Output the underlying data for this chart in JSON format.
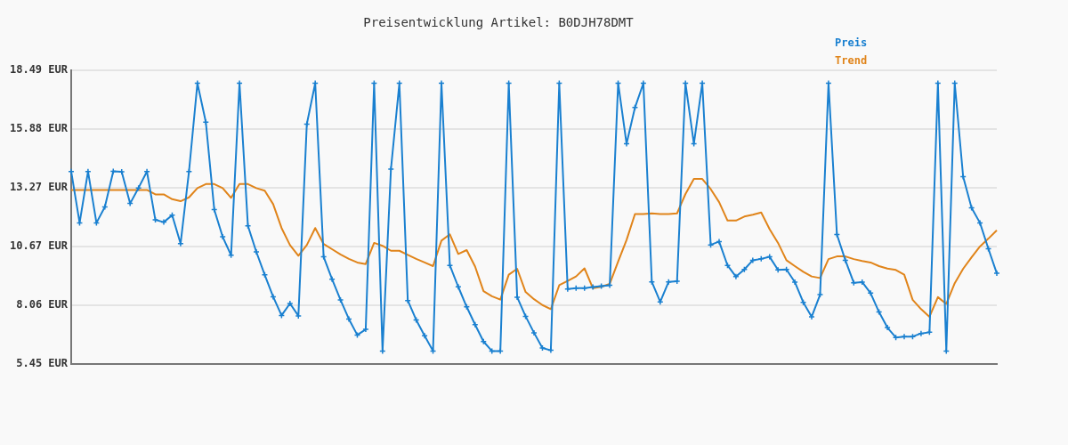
{
  "chart_data": {
    "type": "line",
    "title": "Preisentwicklung Artikel: B0DJH78DMT",
    "categories": [
      null,
      null,
      null,
      null,
      null,
      null,
      null,
      null,
      null,
      null,
      null,
      null,
      null,
      null,
      null,
      null,
      null,
      null,
      null,
      null,
      null,
      null,
      null,
      null,
      null,
      null,
      null,
      null,
      null,
      null,
      null,
      null,
      null,
      null,
      null,
      null,
      null,
      null,
      null,
      null,
      null,
      null,
      null,
      null,
      null,
      null,
      null,
      null,
      null,
      null,
      null,
      null,
      null,
      null,
      null,
      null,
      null,
      null,
      null,
      null,
      null,
      null,
      null,
      null,
      null,
      null,
      null,
      null,
      null,
      null,
      null,
      null,
      null,
      null,
      null,
      null,
      null,
      null,
      null,
      null,
      null,
      null,
      null,
      null,
      null,
      null,
      null,
      null,
      null,
      null,
      null,
      null,
      null,
      null,
      null,
      null,
      null,
      null,
      null,
      null,
      null,
      null,
      null,
      null,
      null,
      null,
      null,
      null,
      null,
      null,
      null
    ],
    "ylim": [
      5.45,
      18.49
    ],
    "yticks": [
      {
        "value": 5.45,
        "label": "5.45 EUR"
      },
      {
        "value": 8.06,
        "label": "8.06 EUR"
      },
      {
        "value": 10.67,
        "label": "10.67 EUR"
      },
      {
        "value": 13.27,
        "label": "13.27 EUR"
      },
      {
        "value": 15.88,
        "label": "15.88 EUR"
      },
      {
        "value": 18.49,
        "label": "18.49 EUR"
      }
    ],
    "grid": "y",
    "legend": "top right",
    "series": [
      {
        "name": "Preis",
        "color": "#1a80d0",
        "marker": "cross",
        "values": [
          13.99,
          11.71,
          13.99,
          11.71,
          12.42,
          14.0,
          13.98,
          12.57,
          13.26,
          13.99,
          11.84,
          11.74,
          12.05,
          10.79,
          13.99,
          17.91,
          16.18,
          12.3,
          11.09,
          10.27,
          17.91,
          11.58,
          10.42,
          9.4,
          8.43,
          7.6,
          8.13,
          7.58,
          16.09,
          17.91,
          10.2,
          9.21,
          8.29,
          7.44,
          6.73,
          6.98,
          17.91,
          6.02,
          14.1,
          17.91,
          8.26,
          7.4,
          6.7,
          6.02,
          17.91,
          9.82,
          8.87,
          7.98,
          7.19,
          6.44,
          6.02,
          6.02,
          17.91,
          8.41,
          7.56,
          6.83,
          6.15,
          6.05,
          17.91,
          8.77,
          8.81,
          8.81,
          8.86,
          8.9,
          8.94,
          17.91,
          15.22,
          16.83,
          17.91,
          9.09,
          8.2,
          9.09,
          9.12,
          17.91,
          15.22,
          17.91,
          10.73,
          10.88,
          9.82,
          9.32,
          9.64,
          10.05,
          10.11,
          10.2,
          9.62,
          9.64,
          9.08,
          8.18,
          7.54,
          8.52,
          17.91,
          11.19,
          10.05,
          9.05,
          9.08,
          8.59,
          7.75,
          7.06,
          6.62,
          6.66,
          6.66,
          6.8,
          6.85,
          17.91,
          6.02,
          17.91,
          13.76,
          12.38,
          11.71,
          10.56,
          9.47
        ]
      },
      {
        "name": "Trend",
        "color": "#e0841a",
        "marker": "none",
        "values": [
          13.17,
          13.17,
          13.17,
          13.17,
          13.17,
          13.17,
          13.17,
          13.17,
          13.17,
          13.17,
          12.97,
          12.97,
          12.76,
          12.67,
          12.84,
          13.25,
          13.43,
          13.43,
          13.25,
          12.82,
          13.43,
          13.43,
          13.25,
          13.14,
          12.54,
          11.48,
          10.72,
          10.25,
          10.72,
          11.48,
          10.77,
          10.54,
          10.31,
          10.11,
          9.95,
          9.88,
          10.82,
          10.69,
          10.47,
          10.47,
          10.29,
          10.11,
          9.95,
          9.79,
          10.92,
          11.2,
          10.33,
          10.5,
          9.77,
          8.68,
          8.45,
          8.3,
          9.41,
          9.67,
          8.64,
          8.32,
          8.06,
          7.88,
          8.94,
          9.13,
          9.33,
          9.69,
          8.81,
          8.87,
          9.0,
          9.99,
          10.95,
          12.1,
          12.1,
          12.13,
          12.1,
          12.1,
          12.13,
          12.99,
          13.66,
          13.66,
          13.21,
          12.63,
          11.81,
          11.81,
          11.99,
          12.07,
          12.17,
          11.43,
          10.82,
          10.05,
          9.79,
          9.54,
          9.33,
          9.26,
          10.1,
          10.22,
          10.22,
          10.1,
          10.02,
          9.95,
          9.79,
          9.68,
          9.62,
          9.41,
          8.29,
          7.88,
          7.54,
          8.41,
          8.11,
          9.03,
          9.67,
          10.18,
          10.66,
          11.01,
          11.38
        ]
      }
    ]
  }
}
